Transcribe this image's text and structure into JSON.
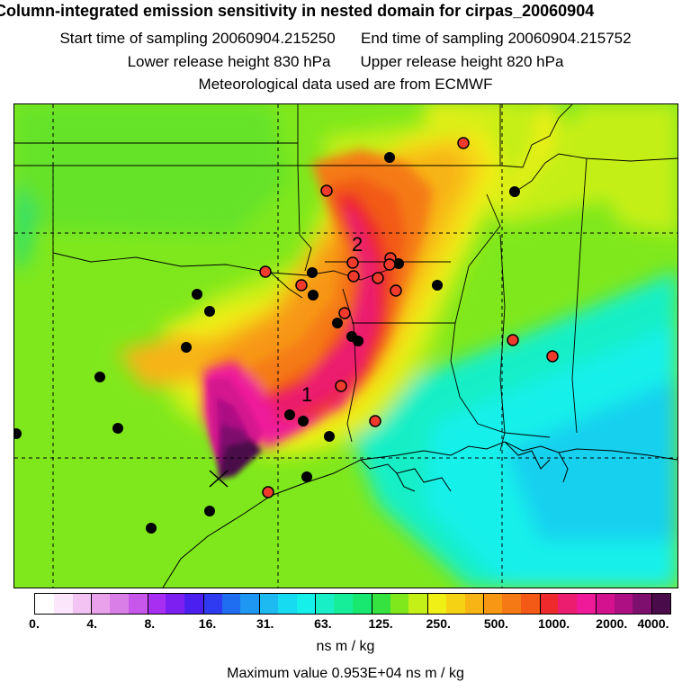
{
  "title": "Column-integrated emission sensitivity in nested domain for cirpas_20060904",
  "start_label": "Start time of sampling 20060904.215250",
  "end_label": "End time of sampling 20060904.215752",
  "lower_label": "Lower release height  830 hPa",
  "upper_label": "Upper release height  820 hPa",
  "met_label": "Meteorological data used are from ECMWF",
  "map_labels": {
    "one": "1",
    "two": "2"
  },
  "colorbar": {
    "colors": [
      "#ffffff",
      "#fbe6fb",
      "#f3c3f3",
      "#e9a1ec",
      "#d97ee6",
      "#c756ea",
      "#a82ef2",
      "#7e1ff2",
      "#4a1ff0",
      "#2f3bf0",
      "#1f6ef2",
      "#1e97f2",
      "#1cbaf0",
      "#17dbf0",
      "#16f0ea",
      "#18efc6",
      "#17ee9a",
      "#19e870",
      "#36e23f",
      "#7fe81d",
      "#c4ef17",
      "#f0ef16",
      "#f6d214",
      "#f7b414",
      "#f79713",
      "#f57a15",
      "#f25a16",
      "#ee2a2c",
      "#ec1d6e",
      "#ee1a9a",
      "#d4128f",
      "#ad1083",
      "#7f0f6e",
      "#4a0b4a"
    ],
    "tick_labels": [
      "0.",
      "4.",
      "8.",
      "16.",
      "31.",
      "63.",
      "125.",
      "250.",
      "500.",
      "1000.",
      "2000.",
      "4000."
    ],
    "units": "ns m / kg"
  },
  "max_label": "Maximum value  0.953E+04 ns m / kg",
  "markers": {
    "black": [
      [
        432,
        174
      ],
      [
        571,
        212
      ],
      [
        346,
        302
      ],
      [
        218,
        326
      ],
      [
        347,
        327
      ],
      [
        232,
        345
      ],
      [
        374,
        358
      ],
      [
        390,
        373
      ],
      [
        397,
        378
      ],
      [
        206,
        385
      ],
      [
        485,
        316
      ],
      [
        442,
        292
      ],
      [
        110,
        418
      ],
      [
        130,
        475
      ],
      [
        17,
        481
      ],
      [
        321,
        460
      ],
      [
        336,
        467
      ],
      [
        365,
        484
      ],
      [
        340,
        529
      ],
      [
        232,
        567
      ],
      [
        167,
        586
      ]
    ],
    "red": [
      [
        514,
        158
      ],
      [
        362,
        211
      ],
      [
        294,
        301
      ],
      [
        334,
        316
      ],
      [
        391,
        291
      ],
      [
        392,
        306
      ],
      [
        419,
        308
      ],
      [
        433,
        286
      ],
      [
        432,
        293
      ],
      [
        439,
        322
      ],
      [
        382,
        347
      ],
      [
        569,
        377
      ],
      [
        613,
        395
      ],
      [
        378,
        428
      ],
      [
        416,
        467
      ],
      [
        297,
        546
      ]
    ]
  }
}
